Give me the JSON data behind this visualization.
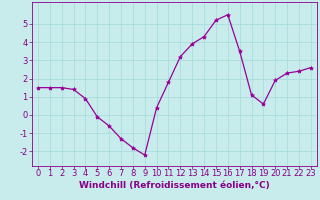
{
  "x": [
    0,
    1,
    2,
    3,
    4,
    5,
    6,
    7,
    8,
    9,
    10,
    11,
    12,
    13,
    14,
    15,
    16,
    17,
    18,
    19,
    20,
    21,
    22,
    23
  ],
  "y": [
    1.5,
    1.5,
    1.5,
    1.4,
    0.9,
    -0.1,
    -0.6,
    -1.3,
    -1.8,
    -2.2,
    0.4,
    1.8,
    3.2,
    3.9,
    4.3,
    5.2,
    5.5,
    3.5,
    1.1,
    0.6,
    1.9,
    2.3,
    2.4,
    2.6
  ],
  "line_color": "#990099",
  "marker": "*",
  "marker_size": 3,
  "xlabel": "Windchill (Refroidissement éolien,°C)",
  "ylim": [
    -2.8,
    6.2
  ],
  "yticks": [
    -2,
    -1,
    0,
    1,
    2,
    3,
    4,
    5
  ],
  "xlim": [
    -0.5,
    23.5
  ],
  "xticks": [
    0,
    1,
    2,
    3,
    4,
    5,
    6,
    7,
    8,
    9,
    10,
    11,
    12,
    13,
    14,
    15,
    16,
    17,
    18,
    19,
    20,
    21,
    22,
    23
  ],
  "grid_color": "#aadddd",
  "background_color": "#c8ecec",
  "label_color": "#880088",
  "xlabel_fontsize": 6.5,
  "tick_fontsize": 6.0
}
